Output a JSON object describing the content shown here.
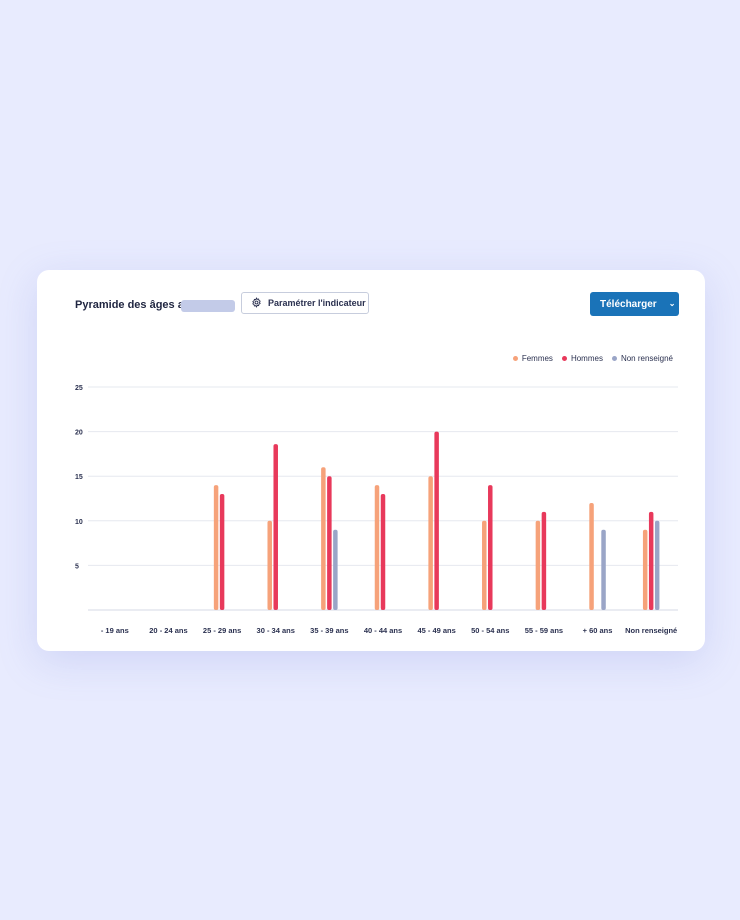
{
  "header": {
    "title": "Pyramide des âges au",
    "param_button_label": "Paramétrer l'indicateur",
    "download_button_label": "Télécharger"
  },
  "icons": {
    "param": "gear-icon",
    "download_menu": "chevron-down-icon"
  },
  "colors": {
    "femmes": "#f6a27a",
    "hommes": "#e8395b",
    "non_renseigne": "#9aa5c7",
    "download": "#1a73b8"
  },
  "chart_data": {
    "type": "bar",
    "title": "Pyramide des âges au",
    "xlabel": "",
    "ylabel": "",
    "ylim": [
      0,
      25
    ],
    "yticks": [
      5,
      10,
      15,
      20,
      25
    ],
    "grid": true,
    "legend_position": "top-right",
    "categories": [
      "- 19 ans",
      "20 - 24 ans",
      "25 - 29 ans",
      "30 - 34 ans",
      "35 - 39 ans",
      "40 - 44 ans",
      "45 - 49 ans",
      "50 - 54 ans",
      "55 - 59 ans",
      "+ 60 ans",
      "Non renseigné"
    ],
    "series": [
      {
        "name": "Femmes",
        "color": "#f6a27a",
        "values": [
          0,
          0,
          14,
          10,
          16,
          14,
          15,
          10,
          10,
          12,
          9
        ]
      },
      {
        "name": "Hommes",
        "color": "#e8395b",
        "values": [
          0,
          0,
          13,
          18.6,
          15,
          13,
          20,
          14,
          11,
          0,
          11
        ]
      },
      {
        "name": "Non renseigné",
        "color": "#9aa5c7",
        "values": [
          0,
          0,
          0,
          0,
          9,
          0,
          0,
          0,
          0,
          9,
          10
        ]
      }
    ]
  }
}
